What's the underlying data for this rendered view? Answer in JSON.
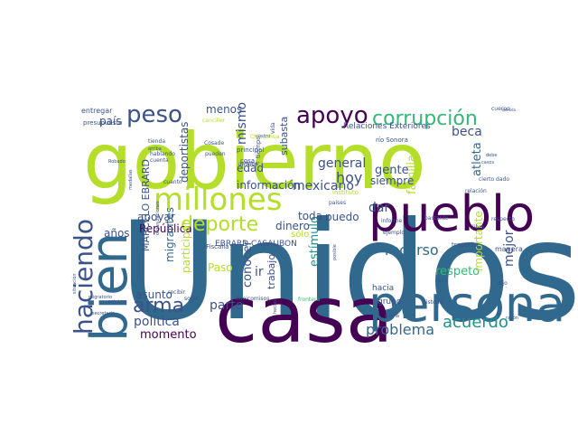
{
  "palette": {
    "dark_purple": "#440154",
    "teal": "#31688e",
    "green": "#35b779",
    "lime": "#b5de2b",
    "gray": "#8f8f8f"
  },
  "words": [
    {
      "text": "Unidos",
      "color": "#31688e"
    },
    {
      "text": "gobierno",
      "color": "#b5de2b"
    },
    {
      "text": "casa",
      "color": "#440154"
    },
    {
      "text": "pueblo",
      "color": "#440154"
    },
    {
      "text": "persona",
      "color": "#31688e"
    },
    {
      "text": "bien",
      "color": "#31688e"
    },
    {
      "text": "millones",
      "color": "#b5de2b"
    },
    {
      "text": "haciendo",
      "color": "#3b528b"
    },
    {
      "text": "peso",
      "color": "#3b528b"
    },
    {
      "text": "apoyo",
      "color": "#440154"
    },
    {
      "text": "corrupción",
      "color": "#35b779"
    },
    {
      "text": "deporte",
      "color": "#b5de2b"
    },
    {
      "text": "arma",
      "color": "#3b528b"
    },
    {
      "text": "problema",
      "color": "#31688e"
    },
    {
      "text": "acuerdo",
      "color": "#21918c"
    },
    {
      "text": "recurso",
      "color": "#31688e"
    },
    {
      "text": "información",
      "color": "#3b528b"
    },
    {
      "text": "mexicano",
      "color": "#3b528b"
    },
    {
      "text": "política",
      "color": "#3b528b"
    },
    {
      "text": "momento",
      "color": "#440154"
    },
    {
      "text": "apoyar",
      "color": "#3b528b"
    },
    {
      "text": "República",
      "color": "#440154"
    },
    {
      "text": "MARCELO EBRARD",
      "color": "#3b528b"
    },
    {
      "text": "migrantes",
      "color": "#31688e"
    },
    {
      "text": "deportistas",
      "color": "#3b528b"
    },
    {
      "text": "participar",
      "color": "#b5de2b"
    },
    {
      "text": "asunto",
      "color": "#3b528b"
    },
    {
      "text": "parte",
      "color": "#3b528b"
    },
    {
      "text": "conocer",
      "color": "#3b528b"
    },
    {
      "text": "trabajo",
      "color": "#3b528b"
    },
    {
      "text": "estímulo",
      "color": "#21918c"
    },
    {
      "text": "respeto",
      "color": "#35b779"
    },
    {
      "text": "importante",
      "color": "#b5de2b"
    },
    {
      "text": "mejor",
      "color": "#3b528b"
    },
    {
      "text": "atleta",
      "color": "#31688e"
    },
    {
      "text": "familia",
      "color": "#b5de2b"
    },
    {
      "text": "beca",
      "color": "#3b528b"
    },
    {
      "text": "general",
      "color": "#3b528b"
    },
    {
      "text": "hoy",
      "color": "#3b528b"
    },
    {
      "text": "dar",
      "color": "#3b528b"
    },
    {
      "text": "gente",
      "color": "#3b528b"
    },
    {
      "text": "siempre",
      "color": "#3b528b"
    },
    {
      "text": "toda",
      "color": "#3b528b"
    },
    {
      "text": "puedo",
      "color": "#3b528b"
    },
    {
      "text": "dinero",
      "color": "#3b528b"
    },
    {
      "text": "edad",
      "color": "#3b528b"
    },
    {
      "text": "mismo",
      "color": "#3b528b"
    },
    {
      "text": "menos",
      "color": "#3b528b"
    },
    {
      "text": "país",
      "color": "#3b528b"
    },
    {
      "text": "años",
      "color": "#3b528b"
    },
    {
      "text": "Paso",
      "color": "#b5de2b"
    },
    {
      "text": "ir",
      "color": "#3b528b"
    },
    {
      "text": "sólo",
      "color": "#b5de2b"
    },
    {
      "text": "subasta",
      "color": "#3b528b"
    },
    {
      "text": "hacia",
      "color": "#3b528b"
    },
    {
      "text": "grupo",
      "color": "#3b528b"
    },
    {
      "text": "Relaciones Exteriores",
      "color": "#3b528b"
    },
    {
      "text": "EBRARD CASAUBON",
      "color": "#3b528b"
    },
    {
      "text": "entregar",
      "color": "#3b528b"
    },
    {
      "text": "presupuesto",
      "color": "#3b528b"
    },
    {
      "text": "canciller",
      "color": "#b5de2b"
    },
    {
      "text": "principal",
      "color": "#3b528b"
    },
    {
      "text": "río Sonora",
      "color": "#3b528b"
    },
    {
      "text": "cierto dado",
      "color": "#3b528b"
    },
    {
      "text": "manera",
      "color": "#3b528b"
    },
    {
      "text": "cuerpo",
      "color": "#3b528b"
    },
    {
      "text": "tragedia",
      "color": "#3b528b"
    },
    {
      "text": "respecto",
      "color": "#3b528b"
    },
    {
      "text": "Fiscalía",
      "color": "#3b528b"
    },
    {
      "text": "cosa",
      "color": "#3b528b"
    },
    {
      "text": "tiempo",
      "color": "#3b528b"
    },
    {
      "text": "vida",
      "color": "#3b528b"
    },
    {
      "text": "informe",
      "color": "#3b528b"
    },
    {
      "text": "bastante",
      "color": "#3b528b"
    },
    {
      "text": "ejemplo",
      "color": "#3b528b"
    },
    {
      "text": "instituto",
      "color": "#b5de2b"
    },
    {
      "text": "fideicomisos",
      "color": "#3b528b"
    },
    {
      "text": "frontera",
      "color": "#35b779"
    },
    {
      "text": "países",
      "color": "#3b528b"
    },
    {
      "text": "relación",
      "color": "#3b528b"
    },
    {
      "text": "situación",
      "color": "#3b528b"
    },
    {
      "text": "secretario",
      "color": "#3b528b"
    },
    {
      "text": "recibir",
      "color": "#3b528b"
    },
    {
      "text": "social",
      "color": "#3b528b"
    },
    {
      "text": "cuanto",
      "color": "#3b528b"
    },
    {
      "text": "Cosade",
      "color": "#3b528b"
    },
    {
      "text": "pueden",
      "color": "#3b528b"
    },
    {
      "text": "incluso",
      "color": "#3b528b"
    },
    {
      "text": "cuatro",
      "color": "#3b528b"
    },
    {
      "text": "hablando",
      "color": "#3b528b"
    },
    {
      "text": "cuenta",
      "color": "#3b528b"
    },
    {
      "text": "tienda",
      "color": "#3b528b"
    },
    {
      "text": "arriba",
      "color": "#3b528b"
    },
    {
      "text": "Robado",
      "color": "#3b528b"
    },
    {
      "text": "medallas",
      "color": "#3b528b"
    },
    {
      "text": "próximo",
      "color": "#3b528b"
    },
    {
      "text": "posible",
      "color": "#3b528b"
    },
    {
      "text": "historia",
      "color": "#3b528b"
    },
    {
      "text": "libro",
      "color": "#3b528b"
    },
    {
      "text": "hecho",
      "color": "#3b528b"
    },
    {
      "text": "quería",
      "color": "#3b528b"
    },
    {
      "text": "razón",
      "color": "#3b528b"
    },
    {
      "text": "vez",
      "color": "#3b528b"
    },
    {
      "text": "dijo",
      "color": "#3b528b"
    },
    {
      "text": "debe",
      "color": "#3b528b"
    },
    {
      "text": "casos",
      "color": "#3b528b"
    },
    {
      "text": "medida",
      "color": "#3b528b"
    },
    {
      "text": "Chihuahua",
      "color": "#b5de2b"
    },
    {
      "text": "informar",
      "color": "#3b528b"
    },
    {
      "text": "migratorio",
      "color": "#3b528b"
    },
    {
      "text": "organizaciones",
      "color": "#3b528b"
    }
  ]
}
